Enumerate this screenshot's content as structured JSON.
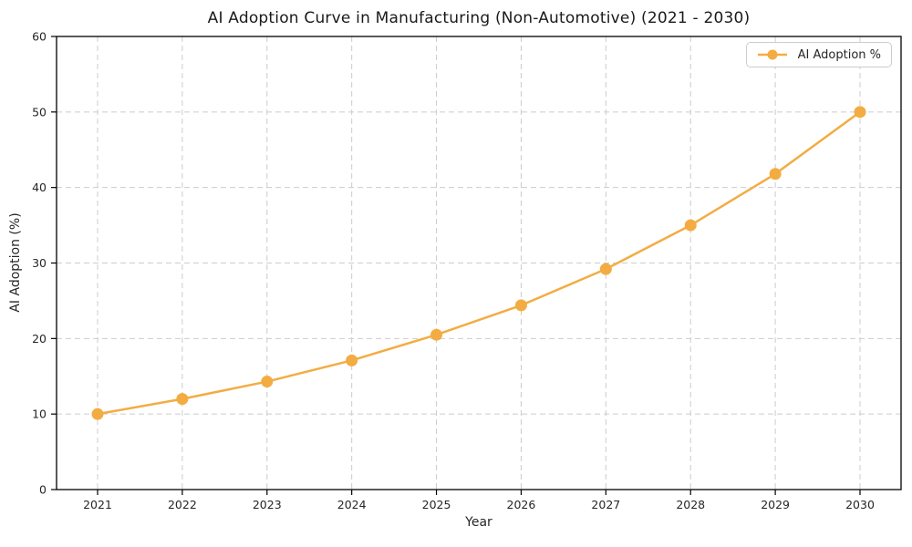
{
  "chart_data": {
    "type": "line",
    "title": "AI Adoption Curve in Manufacturing (Non-Automotive) (2021 - 2030)",
    "xlabel": "Year",
    "ylabel": "AI Adoption (%)",
    "categories": [
      "2021",
      "2022",
      "2023",
      "2024",
      "2025",
      "2026",
      "2027",
      "2028",
      "2029",
      "2030"
    ],
    "series": [
      {
        "name": "AI Adoption %",
        "values": [
          10,
          12,
          14.3,
          17.1,
          20.5,
          24.4,
          29.2,
          35,
          41.8,
          50
        ],
        "color": "#F3AC42",
        "marker": "circle"
      }
    ],
    "ylim": [
      0,
      60
    ],
    "yticks": [
      0,
      10,
      20,
      30,
      40,
      50,
      60
    ],
    "grid": true,
    "grid_style": "dashed",
    "grid_color": "#cccccc",
    "legend_position": "upper right"
  }
}
